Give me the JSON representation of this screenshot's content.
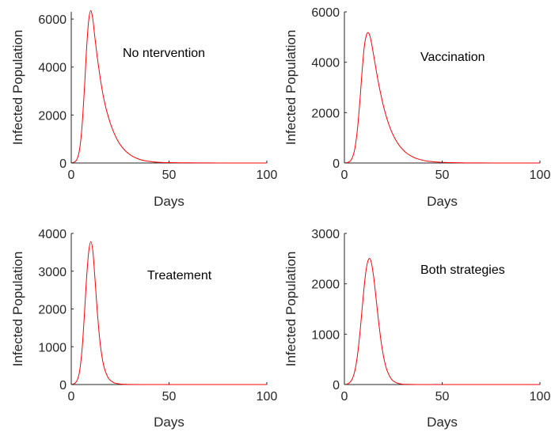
{
  "chart_data": [
    {
      "type": "line",
      "annotation": "No ntervention",
      "xlabel": "Days",
      "ylabel": "Infected Population",
      "xlim": [
        0,
        100
      ],
      "ylim": [
        0,
        6300
      ],
      "xticks": [
        "0",
        "50",
        "100"
      ],
      "yticks": [
        "0",
        "2000",
        "4000",
        "6000"
      ],
      "series": [
        {
          "color": "#ff0000",
          "x": [
            0,
            1,
            2,
            3,
            4,
            5,
            6,
            7,
            8,
            9,
            10,
            11,
            12,
            13,
            14,
            15,
            16,
            17,
            18,
            20,
            22,
            24,
            26,
            28,
            30,
            32,
            35,
            38,
            42,
            46,
            50,
            60,
            70,
            80,
            90,
            100
          ],
          "y": [
            0,
            20,
            60,
            170,
            450,
            1050,
            2100,
            3500,
            5000,
            6000,
            6350,
            6000,
            5300,
            4600,
            4000,
            3450,
            2950,
            2550,
            2200,
            1650,
            1230,
            900,
            660,
            480,
            350,
            250,
            150,
            90,
            45,
            25,
            15,
            5,
            2,
            1,
            0,
            0
          ]
        }
      ]
    },
    {
      "type": "line",
      "annotation": "Vaccination",
      "xlabel": "Days",
      "ylabel": "Infected Population",
      "xlim": [
        0,
        100
      ],
      "ylim": [
        0,
        6000
      ],
      "xticks": [
        "0",
        "50",
        "100"
      ],
      "yticks": [
        "0",
        "2000",
        "4000",
        "6000"
      ],
      "series": [
        {
          "color": "#ff0000",
          "x": [
            0,
            1,
            2,
            3,
            4,
            5,
            6,
            7,
            8,
            9,
            10,
            11,
            12,
            13,
            14,
            15,
            16,
            17,
            18,
            20,
            22,
            24,
            26,
            28,
            30,
            32,
            35,
            38,
            42,
            46,
            50,
            60,
            70,
            80,
            90,
            100
          ],
          "y": [
            0,
            10,
            30,
            80,
            200,
            450,
            900,
            1600,
            2550,
            3600,
            4500,
            5000,
            5180,
            5050,
            4700,
            4250,
            3800,
            3350,
            2950,
            2250,
            1700,
            1270,
            950,
            700,
            520,
            380,
            240,
            150,
            80,
            45,
            25,
            8,
            3,
            1,
            0,
            0
          ]
        }
      ]
    },
    {
      "type": "line",
      "annotation": "Treatement",
      "xlabel": "Days",
      "ylabel": "Infected Population",
      "xlim": [
        0,
        100
      ],
      "ylim": [
        0,
        4000
      ],
      "xticks": [
        "0",
        "50",
        "100"
      ],
      "yticks": [
        "0",
        "1000",
        "2000",
        "3000",
        "4000"
      ],
      "series": [
        {
          "color": "#ff0000",
          "x": [
            0,
            1,
            2,
            3,
            4,
            5,
            6,
            7,
            8,
            9,
            10,
            11,
            12,
            13,
            14,
            15,
            16,
            17,
            18,
            19,
            20,
            22,
            24,
            26,
            28,
            30,
            35,
            40,
            50,
            60,
            70,
            80,
            90,
            100
          ],
          "y": [
            0,
            10,
            40,
            110,
            280,
            640,
            1250,
            2100,
            2950,
            3550,
            3780,
            3550,
            2900,
            2150,
            1500,
            1000,
            650,
            420,
            270,
            170,
            110,
            45,
            20,
            8,
            4,
            2,
            0,
            0,
            0,
            0,
            0,
            0,
            0,
            0
          ]
        }
      ]
    },
    {
      "type": "line",
      "annotation": "Both strategies",
      "xlabel": "Days",
      "ylabel": "Infected Population",
      "xlim": [
        0,
        100
      ],
      "ylim": [
        0,
        3000
      ],
      "xticks": [
        "0",
        "50",
        "100"
      ],
      "yticks": [
        "0",
        "1000",
        "2000",
        "3000"
      ],
      "series": [
        {
          "color": "#ff0000",
          "x": [
            0,
            1,
            2,
            3,
            4,
            5,
            6,
            7,
            8,
            9,
            10,
            11,
            12,
            13,
            14,
            15,
            16,
            17,
            18,
            19,
            20,
            21,
            22,
            24,
            26,
            28,
            30,
            32,
            35,
            40,
            50,
            60,
            70,
            80,
            90,
            100
          ],
          "y": [
            0,
            5,
            20,
            50,
            110,
            220,
            400,
            680,
            1050,
            1480,
            1900,
            2250,
            2450,
            2500,
            2380,
            2120,
            1780,
            1420,
            1080,
            790,
            560,
            385,
            260,
            110,
            45,
            18,
            7,
            3,
            1,
            0,
            0,
            0,
            0,
            0,
            0,
            0
          ]
        }
      ]
    }
  ]
}
